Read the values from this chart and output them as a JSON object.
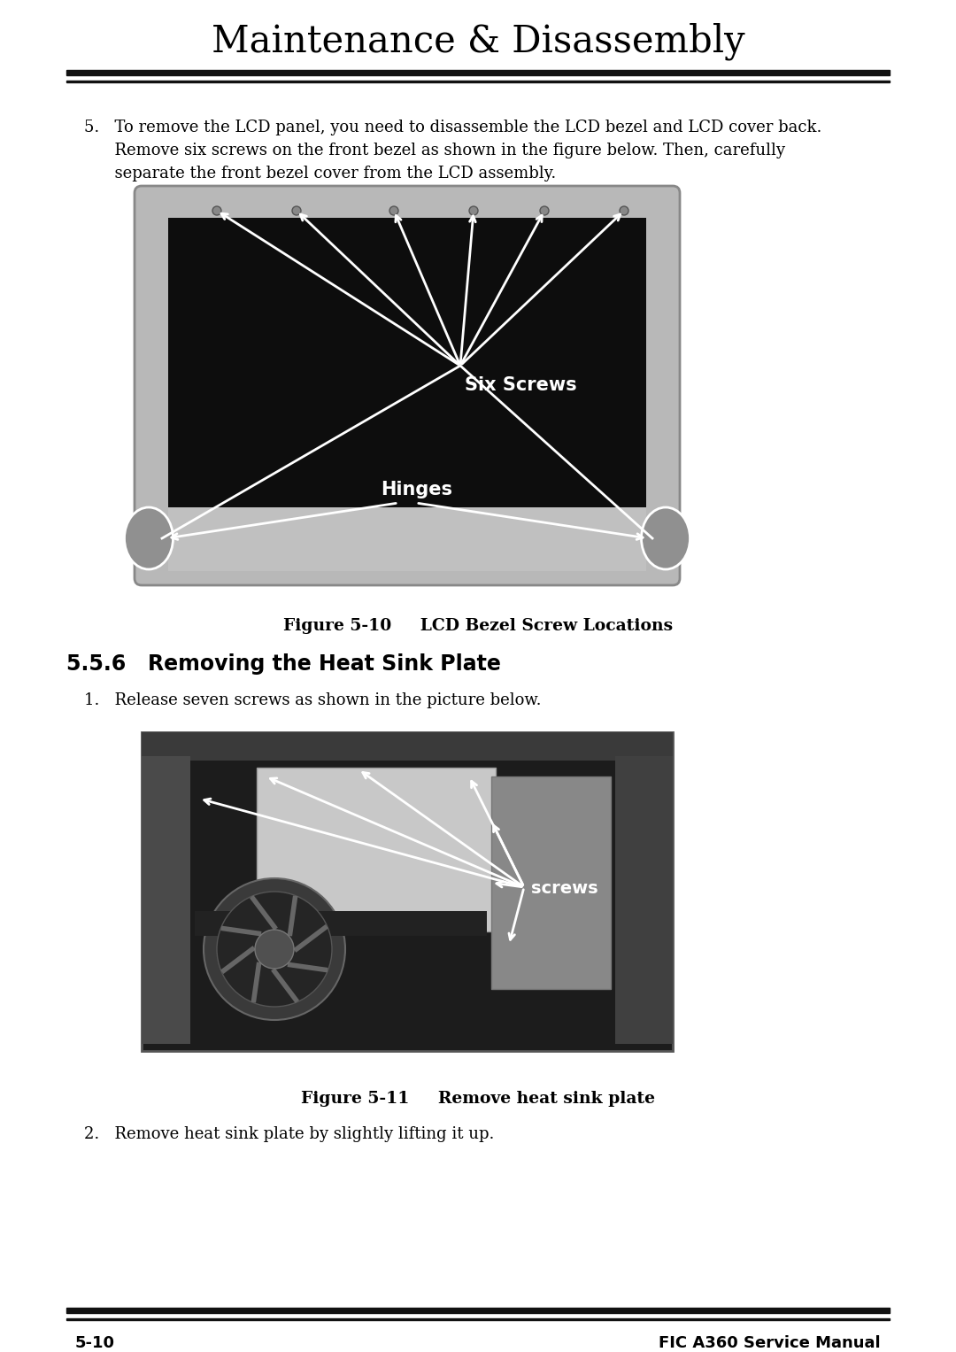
{
  "page_title": "Maintenance & Disassembly",
  "bg_color": "#ffffff",
  "body_text_1_lines": [
    "5.   To remove the LCD panel, you need to disassemble the LCD bezel and LCD cover back.",
    "      Remove six screws on the front bezel as shown in the figure below. Then, carefully",
    "      separate the front bezel cover from the LCD assembly."
  ],
  "fig1_caption": "Figure 5-10     LCD Bezel Screw Locations",
  "section_title": "5.5.6   Removing the Heat Sink Plate",
  "body_text_2": "1.   Release seven screws as shown in the picture below.",
  "fig2_caption": "Figure 5-11     Remove heat sink plate",
  "body_text_3": "2.   Remove heat sink plate by slightly lifting it up.",
  "footer_left": "5-10",
  "footer_right": "FIC A360 Service Manual"
}
